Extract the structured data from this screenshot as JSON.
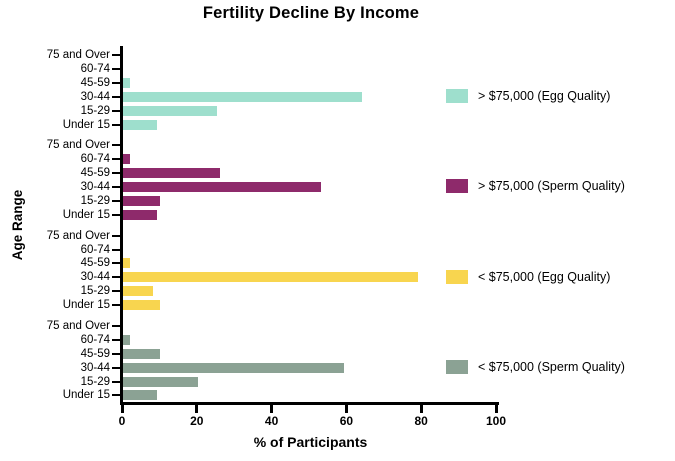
{
  "chart_data": {
    "type": "bar",
    "orientation": "horizontal",
    "title": "Fertility Decline By Income",
    "xlabel": "% of Participants",
    "ylabel": "Age Range",
    "xlim": [
      0,
      100
    ],
    "x_ticks": [
      0,
      20,
      40,
      60,
      80,
      100
    ],
    "grid": false,
    "legend_position": "right",
    "categories": [
      "75 and Over",
      "60-74",
      "45-59",
      "30-44",
      "15-29",
      "Under 15"
    ],
    "series": [
      {
        "name": "> $75,000 (Egg Quality)",
        "color": "#9EDFCD",
        "values": [
          0,
          0,
          2,
          64,
          25,
          9
        ]
      },
      {
        "name": "> $75,000 (Sperm Quality)",
        "color": "#8E2A6B",
        "values": [
          0,
          2,
          26,
          53,
          10,
          9
        ]
      },
      {
        "name": "< $75,000 (Egg Quality)",
        "color": "#F8D54F",
        "values": [
          0,
          0,
          2,
          79,
          8,
          10
        ]
      },
      {
        "name": "< $75,000 (Sperm Quality)",
        "color": "#8BA294",
        "values": [
          0,
          2,
          10,
          59,
          20,
          9
        ]
      }
    ],
    "axis_color": "#000000",
    "text_color": "#000000"
  }
}
